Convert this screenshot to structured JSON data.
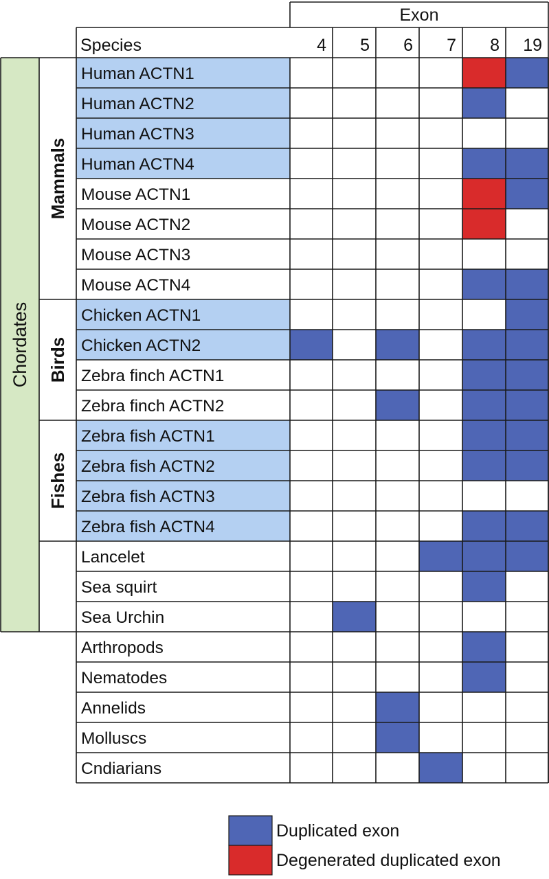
{
  "chart_data": {
    "type": "table",
    "column_group_header": "Exon",
    "species_header": "Species",
    "columns": [
      "4",
      "5",
      "6",
      "7",
      "8",
      "19"
    ],
    "colors": {
      "duplicated": "#4f66b5",
      "degenerated": "#d92b2b",
      "highlight": "#b4d0f2",
      "chordates": "#d6e8c4",
      "grid": "#1a1a1a"
    },
    "rows": [
      {
        "species": "Human ACTN1",
        "highlight": true,
        "cells": [
          "",
          "",
          "",
          "",
          "D",
          "X"
        ]
      },
      {
        "species": "Human ACTN2",
        "highlight": true,
        "cells": [
          "",
          "",
          "",
          "",
          "X",
          ""
        ]
      },
      {
        "species": "Human ACTN3",
        "highlight": true,
        "cells": [
          "",
          "",
          "",
          "",
          "",
          ""
        ]
      },
      {
        "species": "Human ACTN4",
        "highlight": true,
        "cells": [
          "",
          "",
          "",
          "",
          "X",
          "X"
        ]
      },
      {
        "species": "Mouse ACTN1",
        "highlight": false,
        "cells": [
          "",
          "",
          "",
          "",
          "D",
          "X"
        ]
      },
      {
        "species": "Mouse ACTN2",
        "highlight": false,
        "cells": [
          "",
          "",
          "",
          "",
          "D",
          ""
        ]
      },
      {
        "species": "Mouse ACTN3",
        "highlight": false,
        "cells": [
          "",
          "",
          "",
          "",
          "",
          ""
        ]
      },
      {
        "species": "Mouse ACTN4",
        "highlight": false,
        "cells": [
          "",
          "",
          "",
          "",
          "X",
          "X"
        ]
      },
      {
        "species": "Chicken ACTN1",
        "highlight": true,
        "cells": [
          "",
          "",
          "",
          "",
          "",
          "X"
        ]
      },
      {
        "species": "Chicken ACTN2",
        "highlight": true,
        "cells": [
          "X",
          "",
          "X",
          "",
          "X",
          "X"
        ]
      },
      {
        "species": "Zebra finch ACTN1",
        "highlight": false,
        "cells": [
          "",
          "",
          "",
          "",
          "X",
          "X"
        ]
      },
      {
        "species": "Zebra finch ACTN2",
        "highlight": false,
        "cells": [
          "",
          "",
          "X",
          "",
          "X",
          "X"
        ]
      },
      {
        "species": "Zebra fish ACTN1",
        "highlight": true,
        "cells": [
          "",
          "",
          "",
          "",
          "X",
          "X"
        ]
      },
      {
        "species": "Zebra fish ACTN2",
        "highlight": true,
        "cells": [
          "",
          "",
          "",
          "",
          "X",
          "X"
        ]
      },
      {
        "species": "Zebra fish ACTN3",
        "highlight": true,
        "cells": [
          "",
          "",
          "",
          "",
          "",
          ""
        ]
      },
      {
        "species": "Zebra fish ACTN4",
        "highlight": true,
        "cells": [
          "",
          "",
          "",
          "",
          "X",
          "X"
        ]
      },
      {
        "species": "Lancelet",
        "highlight": false,
        "cells": [
          "",
          "",
          "",
          "X",
          "X",
          "X"
        ]
      },
      {
        "species": "Sea squirt",
        "highlight": false,
        "cells": [
          "",
          "",
          "",
          "",
          "X",
          ""
        ]
      },
      {
        "species": "Sea Urchin",
        "highlight": false,
        "cells": [
          "",
          "X",
          "",
          "",
          "",
          ""
        ]
      },
      {
        "species": "Arthropods",
        "highlight": false,
        "cells": [
          "",
          "",
          "",
          "",
          "X",
          ""
        ]
      },
      {
        "species": "Nematodes",
        "highlight": false,
        "cells": [
          "",
          "",
          "",
          "",
          "X",
          ""
        ]
      },
      {
        "species": "Annelids",
        "highlight": false,
        "cells": [
          "",
          "",
          "X",
          "",
          "",
          ""
        ]
      },
      {
        "species": "Molluscs",
        "highlight": false,
        "cells": [
          "",
          "",
          "X",
          "",
          "",
          ""
        ]
      },
      {
        "species": "Cndiarians",
        "highlight": false,
        "cells": [
          "",
          "",
          "",
          "X",
          "",
          ""
        ]
      }
    ],
    "groups": [
      {
        "label": "Mammals",
        "start_row": 0,
        "end_row": 7
      },
      {
        "label": "Birds",
        "start_row": 8,
        "end_row": 11
      },
      {
        "label": "Fishes",
        "start_row": 12,
        "end_row": 15
      },
      {
        "label": "",
        "start_row": 16,
        "end_row": 18
      }
    ],
    "super_group": {
      "label": "Chordates",
      "start_row": 0,
      "end_row": 18
    },
    "legend": [
      {
        "key": "X",
        "label": "Duplicated exon"
      },
      {
        "key": "D",
        "label": "Degenerated duplicated exon"
      }
    ]
  }
}
